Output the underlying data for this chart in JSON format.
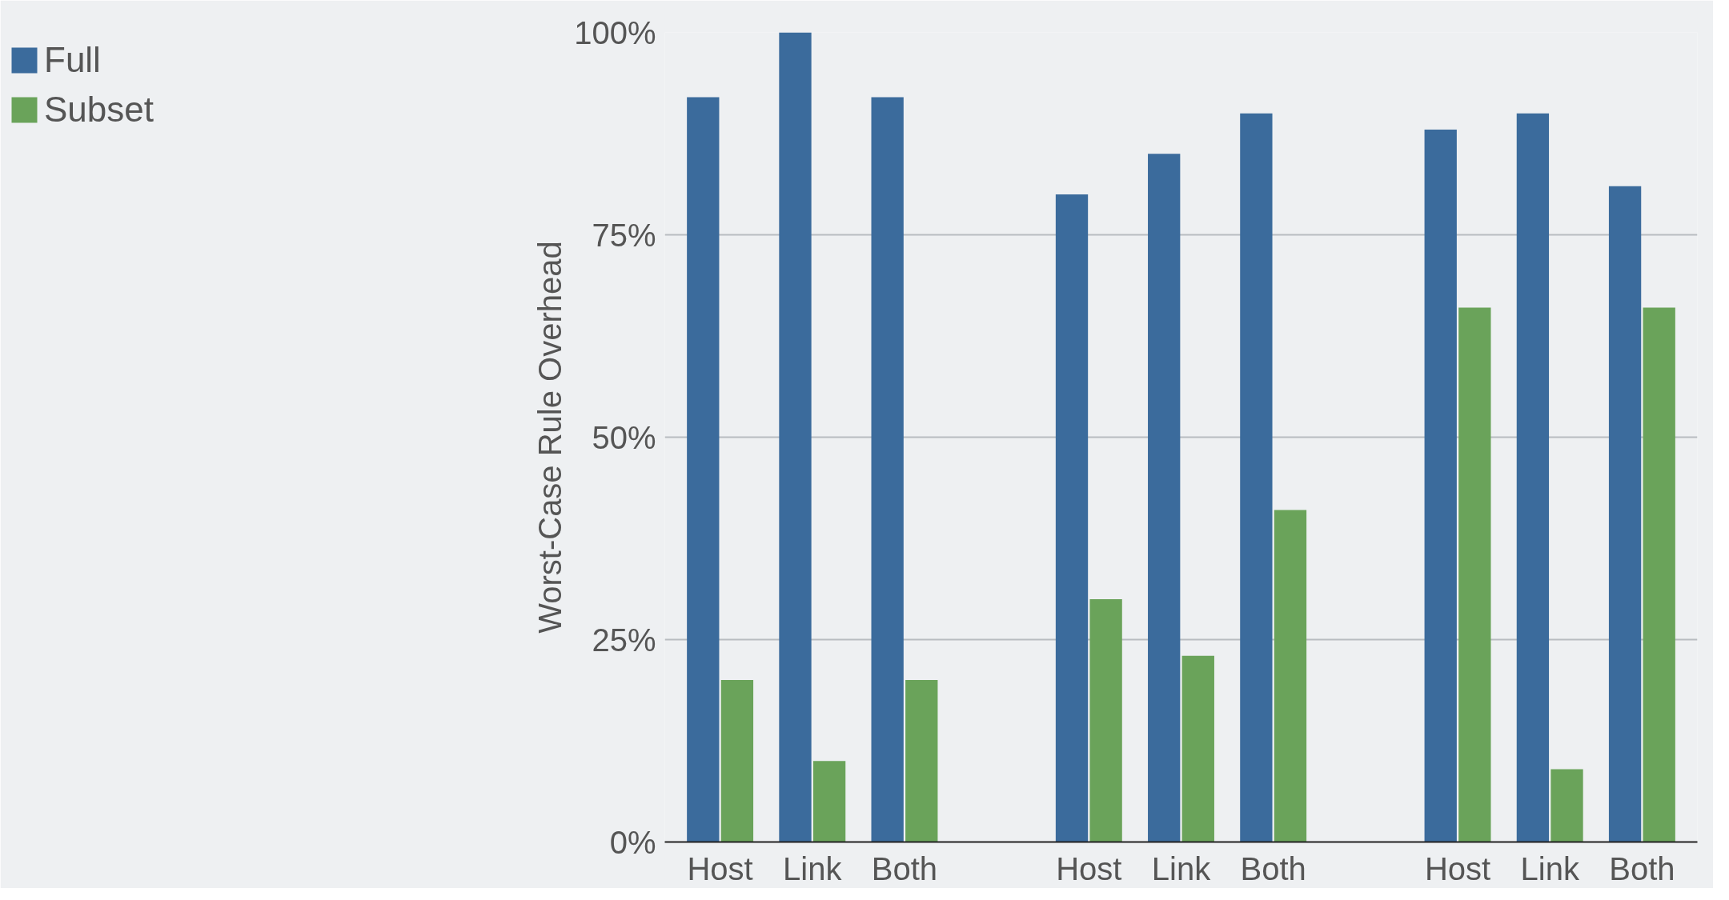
{
  "chart_data": {
    "type": "bar",
    "ylabel": "Worst-Case Rule Overhead",
    "categories": [
      "Host",
      "Link",
      "Both",
      null,
      "Host",
      "Link",
      "Both",
      null,
      "Host",
      "Link",
      "Both"
    ],
    "series": [
      {
        "name": "Full",
        "color": "#3b6b9c",
        "values": [
          92,
          100,
          92,
          null,
          80,
          85,
          90,
          null,
          88,
          90,
          81
        ]
      },
      {
        "name": "Subset",
        "color": "#6aa35a",
        "values": [
          20,
          10,
          20,
          null,
          30,
          23,
          41,
          null,
          66,
          9,
          66
        ]
      }
    ],
    "ylim": [
      0,
      100
    ],
    "yticks": [
      {
        "value": 0,
        "label": "0%"
      },
      {
        "value": 25,
        "label": "25%"
      },
      {
        "value": 50,
        "label": "50%"
      },
      {
        "value": 75,
        "label": "75%"
      },
      {
        "value": 100,
        "label": "100%"
      }
    ],
    "grid": "y",
    "legend": "top left"
  }
}
